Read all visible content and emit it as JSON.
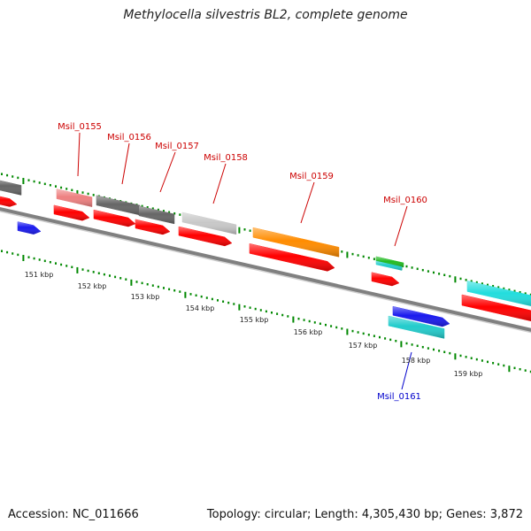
{
  "title": "Methylocella silvestris BL2, complete genome",
  "footer": {
    "accession": "Accession: NC_011666",
    "summary": "Topology: circular; Length: 4,305,430 bp; Genes: 3,872"
  },
  "colors": {
    "cds_red": "#ff0000",
    "label_red": "#cc0000",
    "label_blue": "#0000cc",
    "tick_green": "#008800",
    "backbone": "#808080"
  },
  "scale_labels": [
    "151 kbp",
    "152 kbp",
    "153 kbp",
    "154 kbp",
    "155 kbp",
    "156 kbp",
    "157 kbp",
    "158 kbp",
    "159 kbp"
  ],
  "gene_labels": [
    {
      "text": "Msil_0155",
      "color": "#cc0000"
    },
    {
      "text": "Msil_0156",
      "color": "#cc0000"
    },
    {
      "text": "Msil_0157",
      "color": "#cc0000"
    },
    {
      "text": "Msil_0158",
      "color": "#cc0000"
    },
    {
      "text": "Msil_0159",
      "color": "#cc0000"
    },
    {
      "text": "Msil_0160",
      "color": "#cc0000"
    },
    {
      "text": "Msil_0161",
      "color": "#0000cc"
    }
  ]
}
